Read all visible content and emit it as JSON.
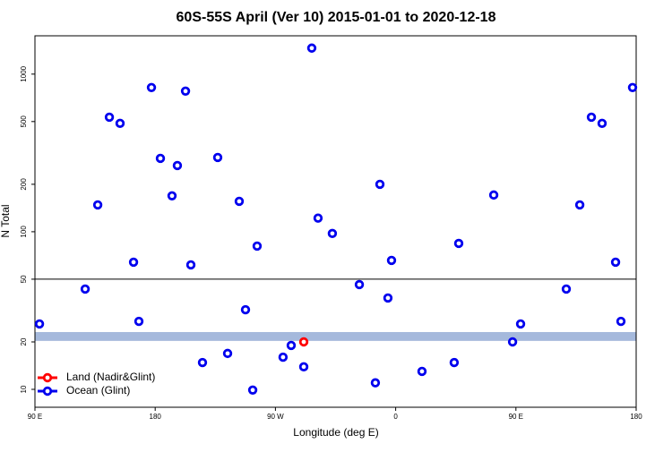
{
  "chart_data": {
    "type": "scatter",
    "title": "60S-55S April (Ver 10)   2015-01-01 to 2020-12-18",
    "x_label": "Longitude (deg E)",
    "y_label": "N Total",
    "xlim": [
      90,
      540
    ],
    "xticks": [
      {
        "value": 90,
        "label": "90 E"
      },
      180,
      {
        "value": 270,
        "label": "90 W"
      },
      {
        "value": 360,
        "label": "0"
      },
      {
        "value": 450,
        "label": "90 E"
      },
      {
        "value": 540,
        "label": "180"
      }
    ],
    "ylim": [
      7.7,
      1750
    ],
    "y_log": true,
    "yticks": [
      10,
      20,
      50,
      100,
      200,
      500,
      1000
    ],
    "hline": 50,
    "band": [
      20.3,
      23.1
    ],
    "band_color": "#a5b9dc",
    "legend": "bottom-left",
    "series": [
      {
        "name": "Land (Nadir&Glint)",
        "color": "#ff0000",
        "x": [
          291.2
        ],
        "values": [
          20.0
        ]
      },
      {
        "name": "Ocean (Glint)",
        "color": "#0000ee",
        "x": [
          93.4,
          127.6,
          137.0,
          145.7,
          153.7,
          163.8,
          167.8,
          177.2,
          183.9,
          192.6,
          196.6,
          202.7,
          206.7,
          215.4,
          226.8,
          234.2,
          242.9,
          247.6,
          253.0,
          256.3,
          275.7,
          281.8,
          291.2,
          297.2,
          301.9,
          312.6,
          332.8,
          344.8,
          348.2,
          354.2,
          356.9,
          379.7,
          403.8,
          407.2,
          433.4,
          447.5,
          453.5,
          487.7,
          497.8,
          506.5,
          514.5,
          524.6,
          528.6,
          537.3
        ],
        "values": [
          26.0,
          43.3,
          148,
          533,
          487,
          64.1,
          27.0,
          822,
          292,
          169,
          263,
          780,
          61.6,
          14.8,
          296,
          16.9,
          156,
          32.0,
          9.9,
          81.1,
          16.0,
          19.0,
          13.9,
          1462,
          122,
          97.5,
          46.2,
          11.0,
          200,
          38.0,
          65.8,
          13.0,
          14.8,
          84.3,
          171,
          20.0,
          26.0,
          43.3,
          148,
          533,
          487,
          64.1,
          27.0,
          822
        ]
      }
    ]
  }
}
